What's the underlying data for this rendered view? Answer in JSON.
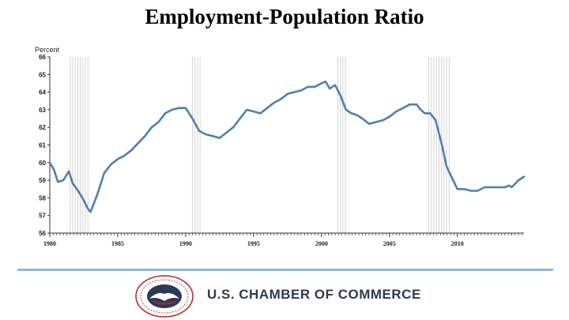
{
  "chart_data": {
    "type": "line",
    "title": "Employment-Population Ratio",
    "ylabel": "Percent",
    "xlabel": "",
    "ylim": [
      56,
      66
    ],
    "xlim": [
      1980,
      2014.9
    ],
    "yticks": [
      56,
      57,
      58,
      59,
      60,
      61,
      62,
      63,
      64,
      65,
      66
    ],
    "xticks": [
      1980,
      1985,
      1990,
      1995,
      2000,
      2005,
      2010
    ],
    "grid": false,
    "legend": "none",
    "series_color": "#4f7fb1",
    "recession_color": "#c8c8c8",
    "recessions": [
      [
        1981.5,
        1982.9
      ],
      [
        1990.5,
        1991.2
      ],
      [
        2001.2,
        2001.9
      ],
      [
        2007.9,
        2009.5
      ]
    ],
    "series": [
      {
        "x": [
          1980.0,
          1980.3,
          1980.6,
          1981.0,
          1981.4,
          1981.7,
          1982.0,
          1982.4,
          1982.8,
          1983.0,
          1983.5,
          1984.0,
          1984.5,
          1985.0,
          1985.5,
          1986.0,
          1986.5,
          1987.0,
          1987.5,
          1988.0,
          1988.5,
          1989.0,
          1989.5,
          1990.0,
          1990.5,
          1991.0,
          1991.5,
          1992.0,
          1992.5,
          1993.0,
          1993.5,
          1994.0,
          1994.5,
          1995.0,
          1995.5,
          1996.0,
          1996.5,
          1997.0,
          1997.5,
          1998.0,
          1998.5,
          1999.0,
          1999.5,
          2000.0,
          2000.3,
          2000.6,
          2001.0,
          2001.4,
          2001.8,
          2002.2,
          2002.6,
          2003.0,
          2003.5,
          2004.0,
          2004.5,
          2005.0,
          2005.5,
          2006.0,
          2006.5,
          2007.0,
          2007.3,
          2007.6,
          2008.0,
          2008.4,
          2008.8,
          2009.2,
          2009.5,
          2010.0,
          2010.5,
          2011.0,
          2011.5,
          2012.0,
          2012.5,
          2013.0,
          2013.5,
          2013.8,
          2014.0,
          2014.5,
          2014.9
        ],
        "values": [
          60.0,
          59.6,
          58.9,
          59.0,
          59.5,
          58.8,
          58.5,
          58.0,
          57.4,
          57.2,
          58.2,
          59.4,
          59.9,
          60.2,
          60.4,
          60.7,
          61.1,
          61.5,
          62.0,
          62.3,
          62.8,
          63.0,
          63.1,
          63.1,
          62.5,
          61.8,
          61.6,
          61.5,
          61.4,
          61.7,
          62.0,
          62.5,
          63.0,
          62.9,
          62.8,
          63.1,
          63.4,
          63.6,
          63.9,
          64.0,
          64.1,
          64.3,
          64.3,
          64.5,
          64.6,
          64.2,
          64.4,
          63.8,
          63.0,
          62.8,
          62.7,
          62.5,
          62.2,
          62.3,
          62.4,
          62.6,
          62.9,
          63.1,
          63.3,
          63.3,
          63.0,
          62.8,
          62.8,
          62.4,
          61.2,
          59.8,
          59.3,
          58.5,
          58.5,
          58.4,
          58.4,
          58.6,
          58.6,
          58.6,
          58.6,
          58.7,
          58.6,
          59.0,
          59.2
        ]
      }
    ]
  },
  "footer": {
    "org_name": "U.S. CHAMBER OF COMMERCE",
    "logo_icon": "chamber-seal-icon"
  }
}
